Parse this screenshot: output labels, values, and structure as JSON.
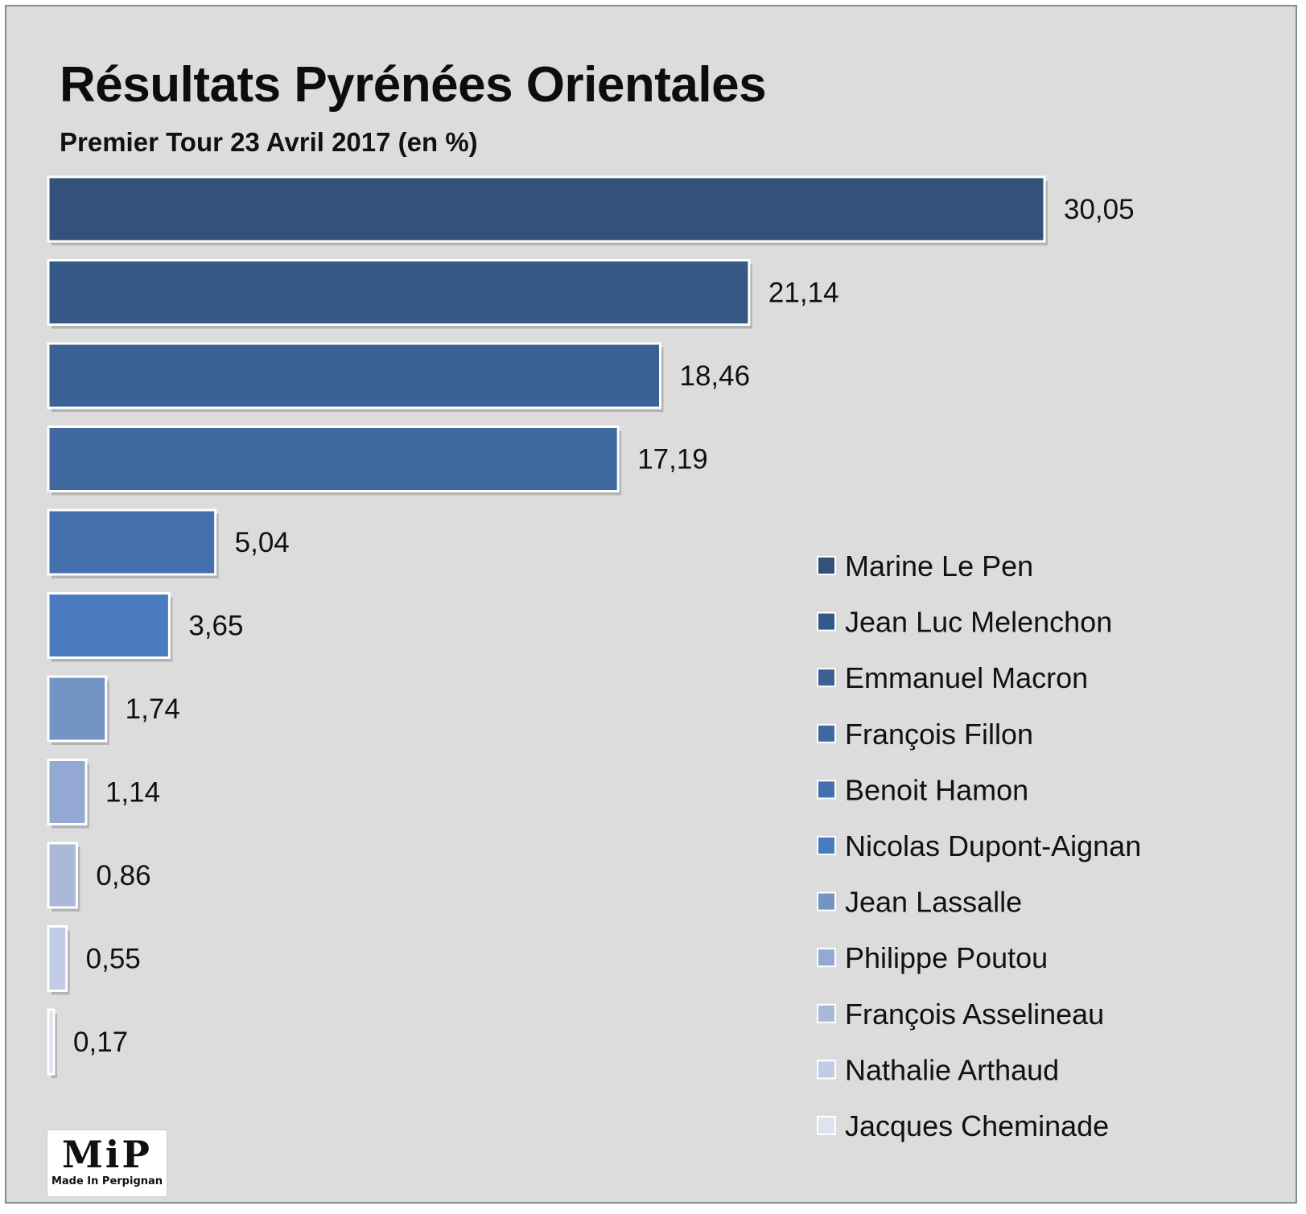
{
  "title": "Résultats Pyrénées Orientales",
  "subtitle": "Premier Tour 23 Avril 2017 (en %)",
  "logo": {
    "mark": "MiP",
    "text": "Made In Perpignan"
  },
  "chart_data": {
    "type": "bar",
    "orientation": "horizontal",
    "title": "Résultats Pyrénées Orientales",
    "subtitle": "Premier Tour 23 Avril 2017 (en %)",
    "categories": [
      "Marine Le Pen",
      "Jean Luc Melenchon",
      "Emmanuel Macron",
      "François Fillon",
      "Benoit Hamon",
      "Nicolas Dupont-Aignan",
      "Jean Lassalle",
      "Philippe Poutou",
      "François Asselineau",
      "Nathalie Arthaud",
      "Jacques Cheminade"
    ],
    "values": [
      30.05,
      21.14,
      18.46,
      17.19,
      5.04,
      3.65,
      1.74,
      1.14,
      0.86,
      0.55,
      0.17
    ],
    "value_labels": [
      "30,05",
      "21,14",
      "18,46",
      "17,19",
      "5,04",
      "3,65",
      "1,74",
      "1,14",
      "0,86",
      "0,55",
      "0,17"
    ],
    "colors": [
      "#32527b",
      "#365a87",
      "#3b6194",
      "#4069a1",
      "#4470ad",
      "#4a7bc0",
      "#7494c5",
      "#93a8d3",
      "#aab9da",
      "#c1cce6",
      "#dfe3f1"
    ],
    "legend_position": "right",
    "grid": false,
    "xlim": [
      0,
      30.05
    ]
  }
}
